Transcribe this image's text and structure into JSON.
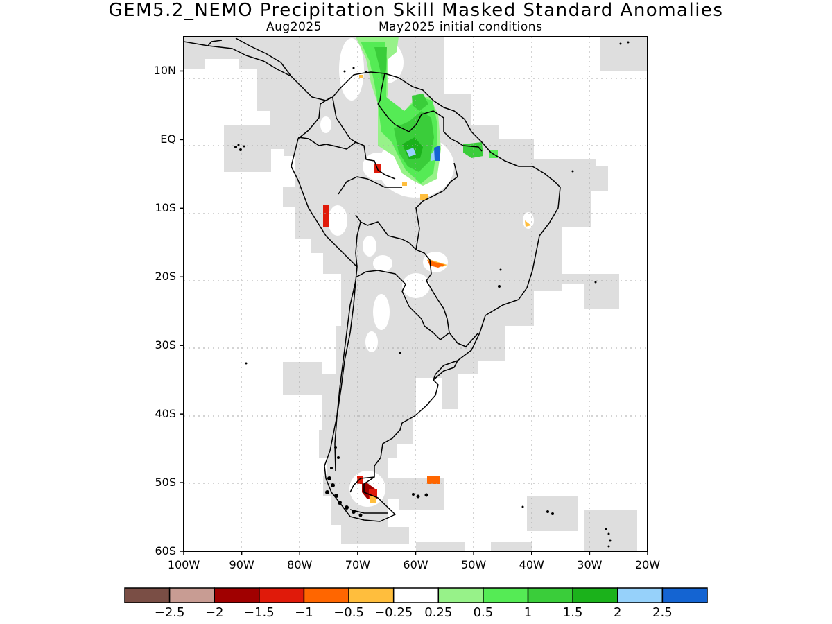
{
  "title": "GEM5.2_NEMO Precipitation Skill Masked Standard Anomalies",
  "subtitle": {
    "month": "Aug2025",
    "init": "May2025 initial conditions"
  },
  "map": {
    "lon_range": [
      -100,
      -20
    ],
    "lat_range": [
      -60,
      15
    ],
    "lat_labels": [
      {
        "lat": 10,
        "text": "10N"
      },
      {
        "lat": 0,
        "text": "EQ"
      },
      {
        "lat": -10,
        "text": "10S"
      },
      {
        "lat": -20,
        "text": "20S"
      },
      {
        "lat": -30,
        "text": "30S"
      },
      {
        "lat": -40,
        "text": "40S"
      },
      {
        "lat": -50,
        "text": "50S"
      },
      {
        "lat": -60,
        "text": "60S"
      }
    ],
    "lon_labels": [
      {
        "lon": -100,
        "text": "100W"
      },
      {
        "lon": -90,
        "text": "90W"
      },
      {
        "lon": -80,
        "text": "80W"
      },
      {
        "lon": -70,
        "text": "70W"
      },
      {
        "lon": -60,
        "text": "60W"
      },
      {
        "lon": -50,
        "text": "50W"
      },
      {
        "lon": -40,
        "text": "40W"
      },
      {
        "lon": -30,
        "text": "30W"
      },
      {
        "lon": -20,
        "text": "20W"
      }
    ],
    "mask_color": "#dedede",
    "anomalies": [
      {
        "lon": -59,
        "lat": 4,
        "value": 1.25
      },
      {
        "lon": -57,
        "lat": 6,
        "value": 1.5
      },
      {
        "lon": -62,
        "lat": 12,
        "value": 0.75
      },
      {
        "lon": -58,
        "lat": 2,
        "value": 1.75
      },
      {
        "lon": -56.5,
        "lat": 1.5,
        "value": 2.7
      },
      {
        "lon": -53,
        "lat": 0,
        "value": 1.25
      },
      {
        "lon": -66,
        "lat": -3.5,
        "value": -1.2
      },
      {
        "lon": -75.5,
        "lat": -10.5,
        "value": -1.2
      },
      {
        "lon": -57,
        "lat": -17.5,
        "value": -0.8
      },
      {
        "lon": -58.5,
        "lat": -8,
        "value": -0.4
      },
      {
        "lon": -41,
        "lat": -12,
        "value": -0.4
      },
      {
        "lon": -69,
        "lat": -51.5,
        "value": -1.7
      },
      {
        "lon": -70,
        "lat": -49.5,
        "value": -1.2
      },
      {
        "lon": -57,
        "lat": -49.5,
        "value": -0.8
      }
    ]
  },
  "colorbar": {
    "colors": [
      "#7a4e45",
      "#c89c93",
      "#a00000",
      "#e01a0a",
      "#ff6600",
      "#ffbe3d",
      "#ffffff",
      "#97f289",
      "#55eb55",
      "#3acd3a",
      "#1bb21b",
      "#96d1fa",
      "#1464d2"
    ],
    "labels": [
      "−2.5",
      "−2",
      "−1.5",
      "−1",
      "−0.5",
      "−0.25",
      "0.25",
      "0.5",
      "1",
      "1.5",
      "2",
      "2.5"
    ]
  }
}
